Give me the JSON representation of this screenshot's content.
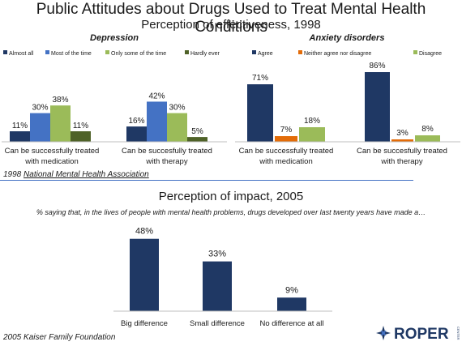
{
  "title": "Public Attitudes about Drugs Used to Treat Mental Health Conditions",
  "subtitle1": "Perception of effectiveness, 1998",
  "source1_year": "1998",
  "source1_org": "National Mental Health Association",
  "subtitle2": "Perception of impact, 2005",
  "caption2": "% saying that, in the lives of people with mental health problems, drugs developed over last twenty years have made a…",
  "source2": "2005 Kaiser Family Foundation",
  "logo_text": "ROPER",
  "logo_small": "CENTER",
  "colors": {
    "dark_blue": "#1f3864",
    "blue": "#4472c4",
    "green": "#9bbb59",
    "dark_green": "#4f6228",
    "orange": "#e36c09"
  },
  "chart_data": [
    {
      "type": "bar",
      "title": "Depression",
      "categories": [
        "Can be successfully treated with medication",
        "Can be succesfully treated with therapy"
      ],
      "series": [
        {
          "name": "Almost all",
          "values": [
            11,
            16
          ]
        },
        {
          "name": "Most of the time",
          "values": [
            30,
            42
          ]
        },
        {
          "name": "Only some of the time",
          "values": [
            38,
            30
          ]
        },
        {
          "name": "Hardly ever",
          "values": [
            11,
            5
          ]
        }
      ],
      "value_suffix": "%",
      "legend": "top"
    },
    {
      "type": "bar",
      "title": "Anxiety disorders",
      "categories": [
        "Can be successfully treated with medication",
        "Can be succesfully treated with therapy"
      ],
      "series": [
        {
          "name": "Agree",
          "values": [
            71,
            86
          ]
        },
        {
          "name": "Neither agree nor disagree",
          "values": [
            7,
            3
          ]
        },
        {
          "name": "Disagree",
          "values": [
            18,
            8
          ]
        }
      ],
      "value_suffix": "%",
      "legend": "top"
    },
    {
      "type": "bar",
      "categories": [
        "Big difference",
        "Small difference",
        "No difference at all"
      ],
      "values": [
        48,
        33,
        9
      ],
      "value_suffix": "%"
    }
  ]
}
